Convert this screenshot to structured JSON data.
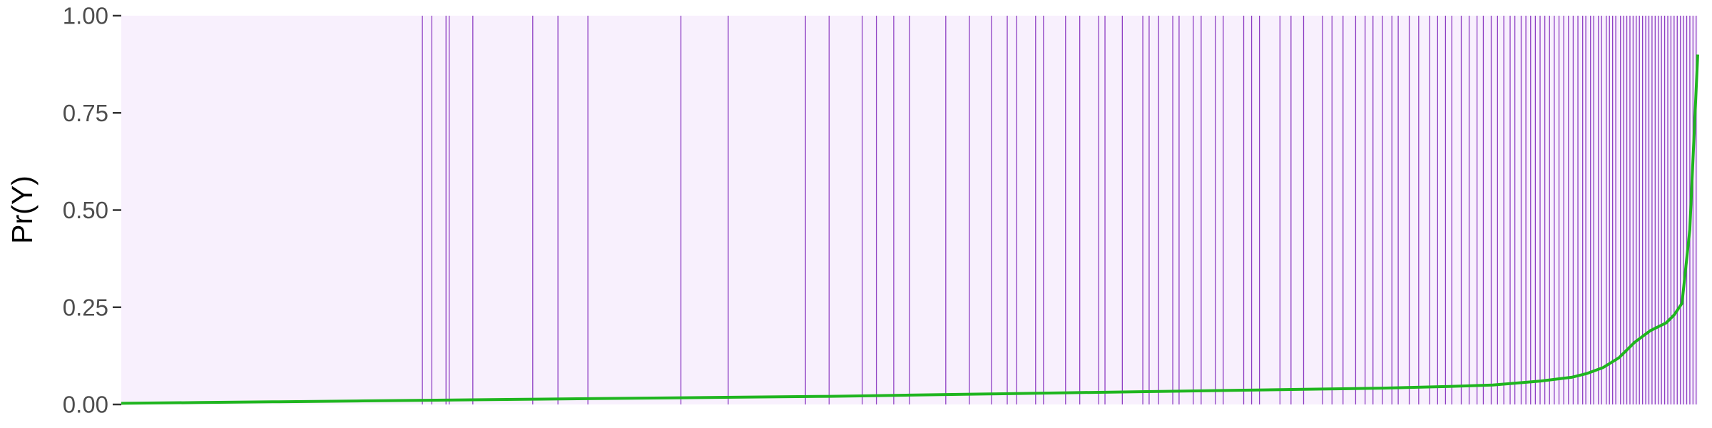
{
  "chart_data": {
    "type": "line",
    "title": "",
    "xlabel": "",
    "ylabel": "Pr(Y)",
    "ylim": [
      0,
      1
    ],
    "yticks": [
      0.0,
      0.25,
      0.5,
      0.75,
      1.0
    ],
    "ytick_labels": [
      "0.00",
      "0.25",
      "0.50",
      "0.75",
      "1.00"
    ],
    "x_range": [
      0,
      1
    ],
    "grid": false,
    "legend": "none",
    "colors": {
      "panel_background": "#f8f0fd",
      "event_lines": "#7a1fb8",
      "curve": "#1fb51f",
      "axis_ticks": "#333333"
    },
    "series": [
      {
        "values": {
          "x": [
            0.0,
            0.05,
            0.1,
            0.15,
            0.2,
            0.25,
            0.3,
            0.35,
            0.4,
            0.45,
            0.5,
            0.55,
            0.6,
            0.65,
            0.7,
            0.75,
            0.8,
            0.84,
            0.87,
            0.9,
            0.92,
            0.93,
            0.94,
            0.95,
            0.96,
            0.97,
            0.98,
            0.985,
            0.99,
            0.995,
            1.0
          ],
          "y": [
            0.003,
            0.005,
            0.007,
            0.009,
            0.011,
            0.013,
            0.015,
            0.017,
            0.019,
            0.021,
            0.024,
            0.027,
            0.03,
            0.033,
            0.036,
            0.039,
            0.042,
            0.046,
            0.05,
            0.06,
            0.07,
            0.08,
            0.095,
            0.12,
            0.16,
            0.19,
            0.21,
            0.23,
            0.26,
            0.45,
            0.9
          ]
        }
      }
    ],
    "event_positions": [
      0.191,
      0.197,
      0.206,
      0.208,
      0.223,
      0.261,
      0.277,
      0.296,
      0.355,
      0.385,
      0.434,
      0.449,
      0.47,
      0.479,
      0.49,
      0.5,
      0.523,
      0.538,
      0.552,
      0.562,
      0.568,
      0.58,
      0.585,
      0.599,
      0.608,
      0.62,
      0.624,
      0.635,
      0.648,
      0.652,
      0.658,
      0.667,
      0.671,
      0.68,
      0.685,
      0.694,
      0.699,
      0.712,
      0.717,
      0.722,
      0.735,
      0.742,
      0.75,
      0.762,
      0.768,
      0.775,
      0.783,
      0.789,
      0.794,
      0.8,
      0.806,
      0.81,
      0.817,
      0.823,
      0.83,
      0.835,
      0.84,
      0.844,
      0.85,
      0.855,
      0.86,
      0.864,
      0.869,
      0.873,
      0.877,
      0.881,
      0.884,
      0.888,
      0.891,
      0.894,
      0.897,
      0.9,
      0.903,
      0.906,
      0.909,
      0.912,
      0.915,
      0.918,
      0.921,
      0.924,
      0.927,
      0.929,
      0.932,
      0.934,
      0.937,
      0.939,
      0.942,
      0.944,
      0.946,
      0.948,
      0.951,
      0.953,
      0.955,
      0.957,
      0.959,
      0.961,
      0.963,
      0.965,
      0.967,
      0.969,
      0.971,
      0.973,
      0.975,
      0.977,
      0.979,
      0.981,
      0.983,
      0.985,
      0.987,
      0.989,
      0.991,
      0.993,
      0.995,
      0.997,
      0.999
    ]
  }
}
